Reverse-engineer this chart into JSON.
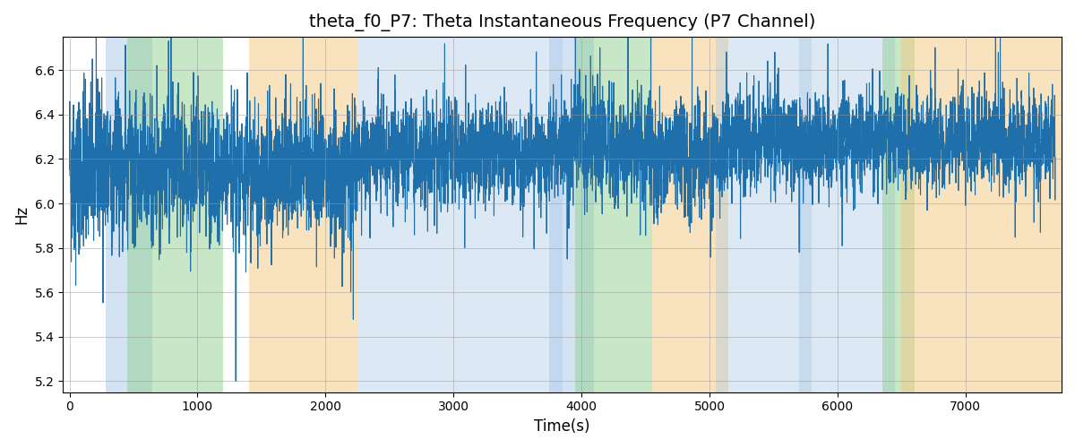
{
  "title": "theta_f0_P7: Theta Instantaneous Frequency (P7 Channel)",
  "xlabel": "Time(s)",
  "ylabel": "Hz",
  "ylim": [
    5.15,
    6.75
  ],
  "xlim": [
    -50,
    7750
  ],
  "line_color": "#1f6faa",
  "line_width": 0.8,
  "title_fontsize": 14,
  "label_fontsize": 12,
  "seed": 42,
  "n_points": 7700,
  "base_freq": 6.2,
  "background_bands": [
    {
      "xmin": 280,
      "xmax": 650,
      "color": "#a8c8e8",
      "alpha": 0.5
    },
    {
      "xmin": 450,
      "xmax": 1200,
      "color": "#90d090",
      "alpha": 0.5
    },
    {
      "xmin": 1400,
      "xmax": 2250,
      "color": "#f5c880",
      "alpha": 0.5
    },
    {
      "xmin": 2250,
      "xmax": 3850,
      "color": "#a8c8e8",
      "alpha": 0.4
    },
    {
      "xmin": 3750,
      "xmax": 4100,
      "color": "#a8c8e8",
      "alpha": 0.5
    },
    {
      "xmin": 3950,
      "xmax": 4550,
      "color": "#90d090",
      "alpha": 0.5
    },
    {
      "xmin": 4550,
      "xmax": 5150,
      "color": "#f5c880",
      "alpha": 0.5
    },
    {
      "xmin": 5050,
      "xmax": 5800,
      "color": "#a8c8e8",
      "alpha": 0.4
    },
    {
      "xmin": 5700,
      "xmax": 6450,
      "color": "#a8c8e8",
      "alpha": 0.4
    },
    {
      "xmin": 6350,
      "xmax": 6600,
      "color": "#90d090",
      "alpha": 0.5
    },
    {
      "xmin": 6500,
      "xmax": 7750,
      "color": "#f5c880",
      "alpha": 0.5
    }
  ],
  "segment_params": [
    {
      "start": 0,
      "end": 280,
      "base": 6.15,
      "noise": 0.18,
      "spike_prob": 0.018,
      "spike_mag": 0.45
    },
    {
      "start": 280,
      "end": 1400,
      "base": 6.15,
      "noise": 0.14,
      "spike_prob": 0.018,
      "spike_mag": 0.4
    },
    {
      "start": 1400,
      "end": 2250,
      "base": 6.15,
      "noise": 0.13,
      "spike_prob": 0.02,
      "spike_mag": 0.55
    },
    {
      "start": 2250,
      "end": 3850,
      "base": 6.22,
      "noise": 0.1,
      "spike_prob": 0.016,
      "spike_mag": 0.35
    },
    {
      "start": 3850,
      "end": 4550,
      "base": 6.25,
      "noise": 0.12,
      "spike_prob": 0.018,
      "spike_mag": 0.4
    },
    {
      "start": 4550,
      "end": 5150,
      "base": 6.22,
      "noise": 0.11,
      "spike_prob": 0.018,
      "spike_mag": 0.38
    },
    {
      "start": 5150,
      "end": 7750,
      "base": 6.28,
      "noise": 0.1,
      "spike_prob": 0.016,
      "spike_mag": 0.38
    }
  ]
}
